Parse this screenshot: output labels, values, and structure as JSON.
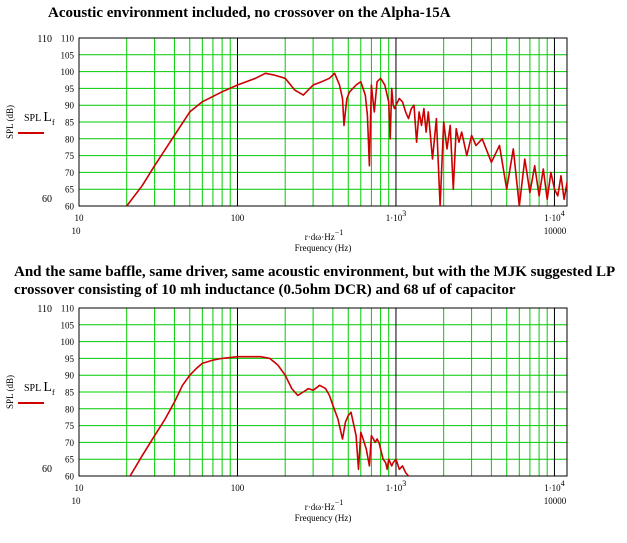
{
  "headings": {
    "first": "Acoustic environment included, no crossover on the Alpha-15A",
    "second": "And the same baffle, same driver, same acoustic environment, but with the MJK suggested LP crossover consisting of 10 mh inductance (0.5ohm DCR) and 68 uf of capacitor"
  },
  "chart_data": [
    {
      "type": "line",
      "title": "Acoustic environment included, no crossover on the Alpha-15A",
      "xlabel": "Frequency (Hz)",
      "xlabel_expr": "r·dω·Hz",
      "xlabel_exp": "−1",
      "ylabel": "SPL (dB)",
      "legend": {
        "label": "SPL",
        "sub": "f",
        "placement": "left",
        "color": "#cc0000"
      },
      "xscale": "log",
      "xlim": [
        10,
        12000
      ],
      "ylim": [
        60,
        110
      ],
      "ymin_label": "60",
      "ymax_label": "110",
      "yticks": [
        "110",
        "105",
        "100",
        "95",
        "90",
        "85",
        "80",
        "75",
        "70",
        "65",
        "60"
      ],
      "xticks": [
        {
          "value": 10,
          "label": "10"
        },
        {
          "value": 100,
          "label": "100"
        },
        {
          "value": 1000,
          "label": "1·10",
          "exp": "3"
        },
        {
          "value": 10000,
          "label": "1·10",
          "exp": "4"
        }
      ],
      "xrange_left_label": "10",
      "xrange_right_label": "10000",
      "grid": true,
      "grid_color": "#00cc00",
      "decade_line_color": "#000000",
      "series": [
        {
          "color": "#cc0000",
          "x": [
            20,
            25,
            30,
            40,
            50,
            60,
            80,
            100,
            130,
            150,
            170,
            200,
            230,
            260,
            300,
            340,
            380,
            410,
            440,
            460,
            470,
            480,
            490,
            510,
            560,
            600,
            640,
            660,
            680,
            690,
            700,
            710,
            730,
            760,
            800,
            850,
            900,
            920,
            940,
            960,
            980,
            1000,
            1050,
            1100,
            1150,
            1200,
            1250,
            1300,
            1350,
            1400,
            1450,
            1500,
            1550,
            1600,
            1700,
            1800,
            1900,
            2000,
            2100,
            2200,
            2300,
            2400,
            2500,
            2600,
            2800,
            3000,
            3200,
            3500,
            4000,
            4500,
            5000,
            5500,
            6000,
            6500,
            7000,
            7500,
            8000,
            8500,
            9000,
            9500,
            10000,
            10500,
            11000,
            11500,
            12000
          ],
          "y": [
            60,
            66,
            72,
            81,
            88,
            91,
            94,
            96,
            98,
            99.5,
            99,
            98,
            94.5,
            93,
            96,
            97,
            98,
            99.5,
            96,
            92,
            84,
            88,
            92,
            94,
            96,
            97,
            93,
            87,
            72,
            84,
            96,
            93,
            88,
            97,
            98,
            96,
            91,
            80,
            95,
            90,
            89,
            90,
            92,
            91,
            88,
            86,
            89,
            90,
            79,
            88,
            84,
            89,
            82,
            88,
            74,
            86,
            60,
            85,
            77,
            84,
            65,
            83,
            79,
            82,
            75,
            81,
            78,
            80,
            73,
            78,
            65,
            77,
            60,
            74,
            64,
            72,
            63,
            71,
            62,
            70,
            65,
            63,
            69,
            62,
            67
          ]
        }
      ]
    },
    {
      "type": "line",
      "title": "And the same baffle, same driver, same acoustic environment, but with the MJK suggested LP crossover consisting of 10 mh inductance (0.5ohm DCR) and 68 uf of capacitor",
      "xlabel": "Frequency (Hz)",
      "xlabel_expr": "r·dω·Hz",
      "xlabel_exp": "−1",
      "ylabel": "SPL (dB)",
      "legend": {
        "label": "SPL",
        "sub": "f",
        "placement": "left",
        "color": "#cc0000"
      },
      "xscale": "log",
      "xlim": [
        10,
        12000
      ],
      "ylim": [
        60,
        110
      ],
      "ymin_label": "60",
      "ymax_label": "110",
      "yticks": [
        "110",
        "105",
        "100",
        "95",
        "90",
        "85",
        "80",
        "75",
        "70",
        "65",
        "60"
      ],
      "xticks": [
        {
          "value": 10,
          "label": "10"
        },
        {
          "value": 100,
          "label": "100"
        },
        {
          "value": 1000,
          "label": "1·10",
          "exp": "3"
        },
        {
          "value": 10000,
          "label": "1·10",
          "exp": "4"
        }
      ],
      "xrange_left_label": "10",
      "xrange_right_label": "10000",
      "grid": true,
      "grid_color": "#00cc00",
      "decade_line_color": "#000000",
      "series": [
        {
          "color": "#cc0000",
          "x": [
            21,
            25,
            30,
            35,
            40,
            45,
            50,
            55,
            60,
            70,
            80,
            100,
            120,
            140,
            160,
            180,
            200,
            220,
            240,
            260,
            280,
            300,
            330,
            360,
            380,
            400,
            430,
            460,
            480,
            500,
            520,
            560,
            580,
            600,
            620,
            650,
            680,
            700,
            720,
            740,
            760,
            780,
            800,
            830,
            860,
            880,
            900,
            920,
            940,
            960,
            1000,
            1050,
            1100,
            1150,
            1200
          ],
          "y": [
            60,
            66,
            72,
            77,
            82,
            87,
            90,
            92,
            93.5,
            94.5,
            95,
            95.5,
            95.5,
            95.5,
            95,
            93,
            90,
            86,
            84,
            85,
            86,
            85.5,
            87,
            86,
            84,
            81,
            77,
            71,
            76,
            78,
            79,
            72,
            62,
            73,
            71,
            68,
            63,
            72,
            71,
            70,
            71,
            70,
            68,
            65,
            64,
            62,
            65,
            64,
            63,
            64,
            65,
            62,
            63,
            61,
            60
          ]
        }
      ]
    }
  ]
}
